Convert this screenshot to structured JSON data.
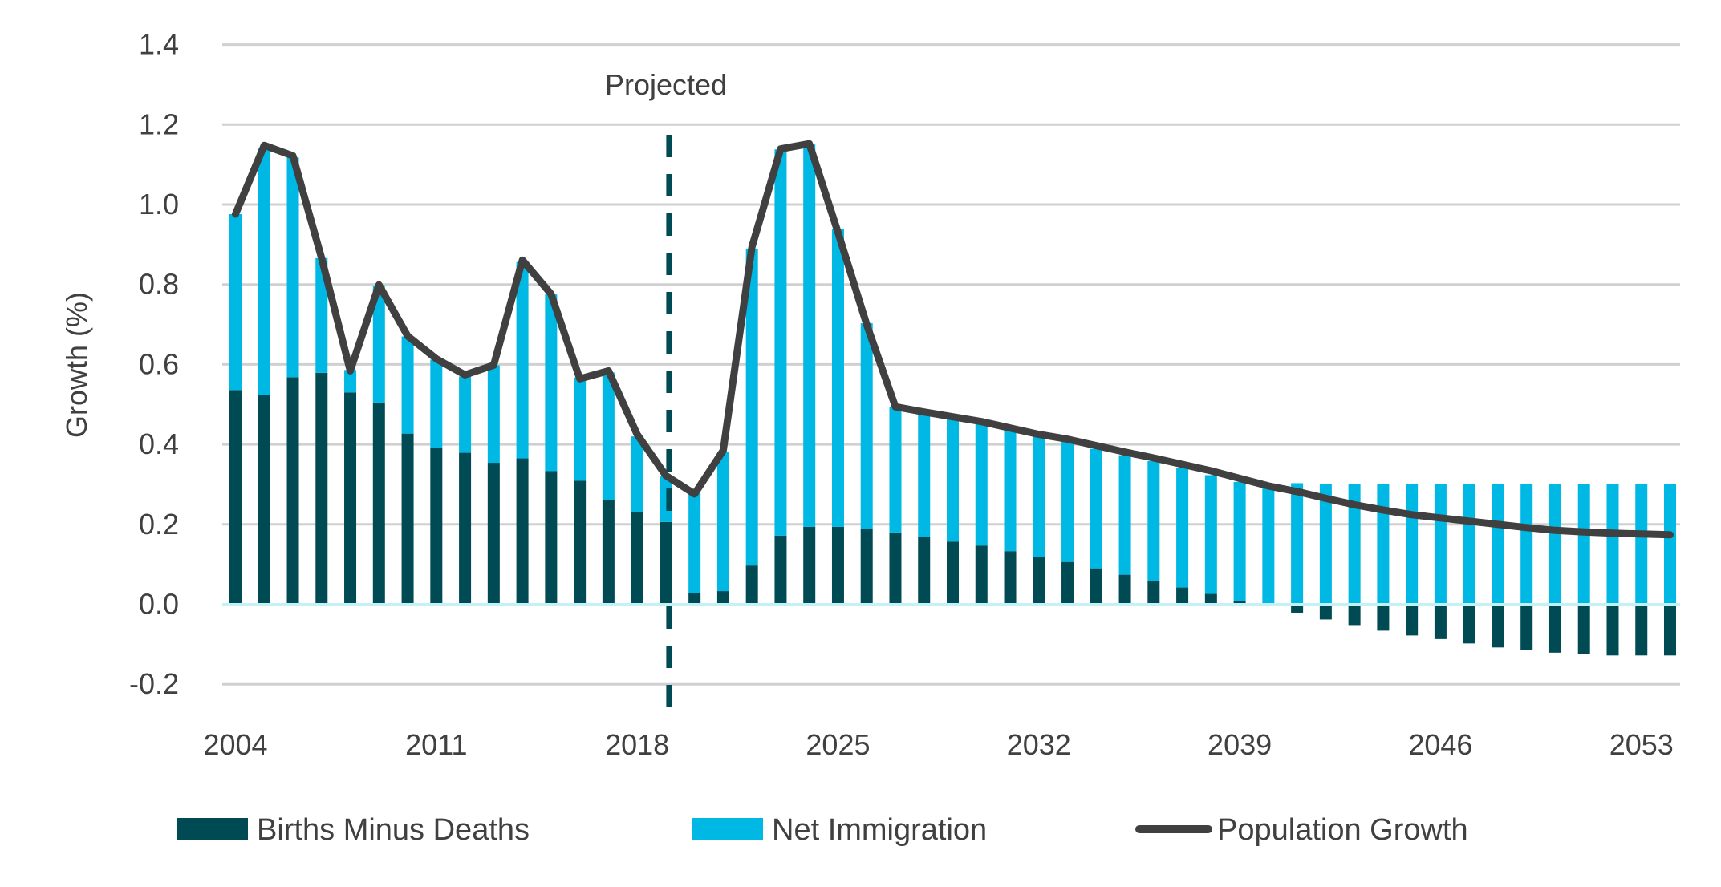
{
  "chart_data": {
    "type": "bar",
    "subtype": "stacked bar with line overlay",
    "title": "",
    "xlabel": "",
    "ylabel": "Growth (%)",
    "ylim": [
      -0.2,
      1.4
    ],
    "yticks": [
      -0.2,
      0.0,
      0.2,
      0.4,
      0.6,
      0.8,
      1.0,
      1.2,
      1.4
    ],
    "ytick_labels": [
      "-0.2",
      "0.0",
      "0.2",
      "0.4",
      "0.6",
      "0.8",
      "1.0",
      "1.2",
      "1.4"
    ],
    "xtick_labels": [
      "2004",
      "2011",
      "2018",
      "2025",
      "2032",
      "2039",
      "2046",
      "2053"
    ],
    "grid": true,
    "legend_position": "bottom",
    "annotations": [
      {
        "text": "Projected",
        "type": "vertical-dashed-line",
        "between": [
          2019,
          2020
        ]
      }
    ],
    "categories": [
      2004,
      2005,
      2006,
      2007,
      2008,
      2009,
      2010,
      2011,
      2012,
      2013,
      2014,
      2015,
      2016,
      2017,
      2018,
      2019,
      2020,
      2021,
      2022,
      2023,
      2024,
      2025,
      2026,
      2027,
      2028,
      2029,
      2030,
      2031,
      2032,
      2033,
      2034,
      2035,
      2036,
      2037,
      2038,
      2039,
      2040,
      2041,
      2042,
      2043,
      2044,
      2045,
      2046,
      2047,
      2048,
      2049,
      2050,
      2051,
      2052,
      2053,
      2054
    ],
    "series": [
      {
        "name": "Births Minus Deaths",
        "kind": "bar",
        "color": "#004A54",
        "values": [
          0.536,
          0.524,
          0.568,
          0.579,
          0.53,
          0.505,
          0.427,
          0.391,
          0.379,
          0.354,
          0.365,
          0.333,
          0.309,
          0.261,
          0.23,
          0.206,
          0.028,
          0.033,
          0.097,
          0.172,
          0.194,
          0.194,
          0.189,
          0.18,
          0.169,
          0.157,
          0.147,
          0.133,
          0.119,
          0.106,
          0.09,
          0.074,
          0.058,
          0.042,
          0.026,
          0.008,
          -0.004,
          -0.021,
          -0.038,
          -0.052,
          -0.066,
          -0.078,
          -0.087,
          -0.098,
          -0.108,
          -0.114,
          -0.121,
          -0.124,
          -0.128,
          -0.128,
          -0.128
        ]
      },
      {
        "name": "Net Immigration",
        "kind": "bar",
        "color": "#00B8E4",
        "values": [
          0.44,
          0.616,
          0.55,
          0.287,
          0.056,
          0.291,
          0.243,
          0.221,
          0.191,
          0.244,
          0.491,
          0.442,
          0.258,
          0.319,
          0.19,
          0.114,
          0.25,
          0.348,
          0.793,
          0.966,
          0.956,
          0.744,
          0.514,
          0.313,
          0.305,
          0.308,
          0.306,
          0.304,
          0.302,
          0.302,
          0.299,
          0.299,
          0.3,
          0.298,
          0.297,
          0.298,
          0.29,
          0.303,
          0.301,
          0.301,
          0.301,
          0.301,
          0.301,
          0.301,
          0.301,
          0.301,
          0.301,
          0.301,
          0.301,
          0.301,
          0.301
        ]
      },
      {
        "name": "Population Growth",
        "kind": "line",
        "color": "#404040",
        "values": [
          0.976,
          1.148,
          1.122,
          0.866,
          0.584,
          0.799,
          0.671,
          0.614,
          0.574,
          0.598,
          0.861,
          0.776,
          0.564,
          0.584,
          0.425,
          0.322,
          0.276,
          0.385,
          0.894,
          1.139,
          1.152,
          0.93,
          0.7,
          0.494,
          0.481,
          0.469,
          0.457,
          0.441,
          0.425,
          0.413,
          0.397,
          0.381,
          0.366,
          0.35,
          0.334,
          0.315,
          0.296,
          0.282,
          0.265,
          0.249,
          0.236,
          0.224,
          0.216,
          0.208,
          0.2,
          0.192,
          0.185,
          0.181,
          0.178,
          0.176,
          0.174
        ]
      }
    ]
  },
  "legend": [
    {
      "label": "Births Minus Deaths",
      "color": "#004A54",
      "kind": "swatch"
    },
    {
      "label": "Net Immigration",
      "color": "#00B8E4",
      "kind": "swatch"
    },
    {
      "label": "Population Growth",
      "color": "#404040",
      "kind": "line"
    }
  ],
  "colors": {
    "gridline": "#D0D0D0",
    "zero_line": "#C2F2F8",
    "projection_line": "#004A54",
    "text": "#404040"
  }
}
